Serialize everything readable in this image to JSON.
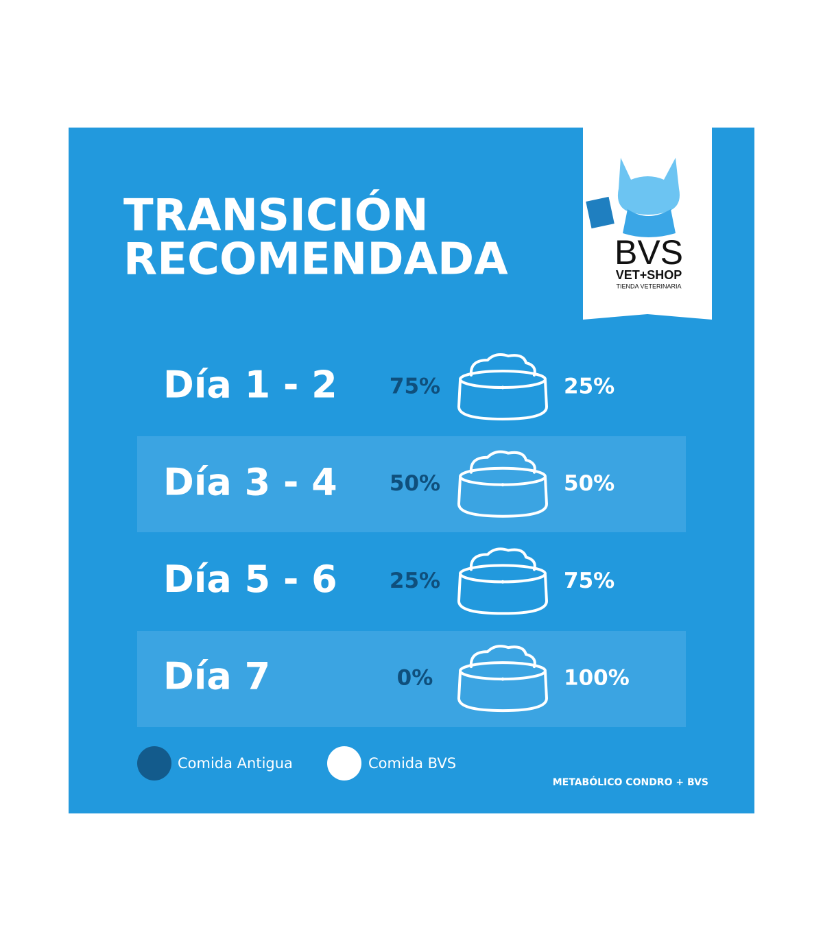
{
  "title": [
    "TRANSICIÓN",
    "RECOMENDADA"
  ],
  "logo": {
    "brand": "BVS",
    "sub": "VET+SHOP",
    "tagline": "TIENDA VETERINARIA"
  },
  "rows": [
    {
      "day": "Día 1 - 2",
      "old": "75%",
      "new": "25%"
    },
    {
      "day": "Día 3 - 4",
      "old": "50%",
      "new": "50%"
    },
    {
      "day": "Día 5 - 6",
      "old": "25%",
      "new": "75%"
    },
    {
      "day": "Día 7",
      "old": "0%",
      "new": "100%"
    }
  ],
  "legend": [
    "Comida Antigua",
    "Comida BVS"
  ],
  "footer": "METABÓLICO CONDRO + BVS"
}
